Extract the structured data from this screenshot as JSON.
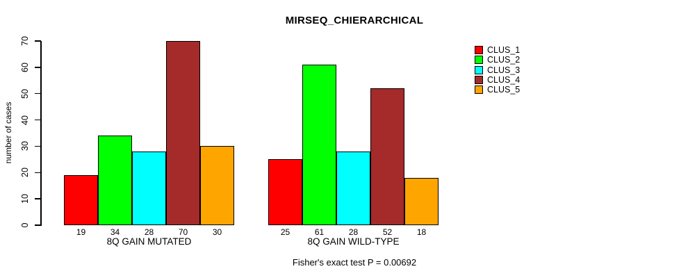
{
  "chart_data": {
    "type": "bar",
    "title": "MIRSEQ_CHIERARCHICAL",
    "xlabel": "",
    "ylabel": "number of cases",
    "ylim": [
      0,
      70
    ],
    "yticks": [
      0,
      10,
      20,
      30,
      40,
      50,
      60,
      70
    ],
    "grid": false,
    "legend_position": "right",
    "categories": [
      "8Q GAIN MUTATED",
      "8Q GAIN WILD-TYPE"
    ],
    "series": [
      {
        "name": "CLUS_1",
        "color": "#ff0000",
        "values": [
          19,
          25
        ]
      },
      {
        "name": "CLUS_2",
        "color": "#00ff00",
        "values": [
          34,
          61
        ]
      },
      {
        "name": "CLUS_3",
        "color": "#00ffff",
        "values": [
          28,
          28
        ]
      },
      {
        "name": "CLUS_4",
        "color": "#a52a2a",
        "values": [
          70,
          52
        ]
      },
      {
        "name": "CLUS_5",
        "color": "#ffa500",
        "values": [
          30,
          18
        ]
      }
    ],
    "bar_value_labels_shown": true,
    "annotation": "Fisher's exact test P = 0.00692",
    "colors": {
      "background": "#ffffff",
      "foreground": "#000000",
      "bar_border": "#000000"
    }
  }
}
